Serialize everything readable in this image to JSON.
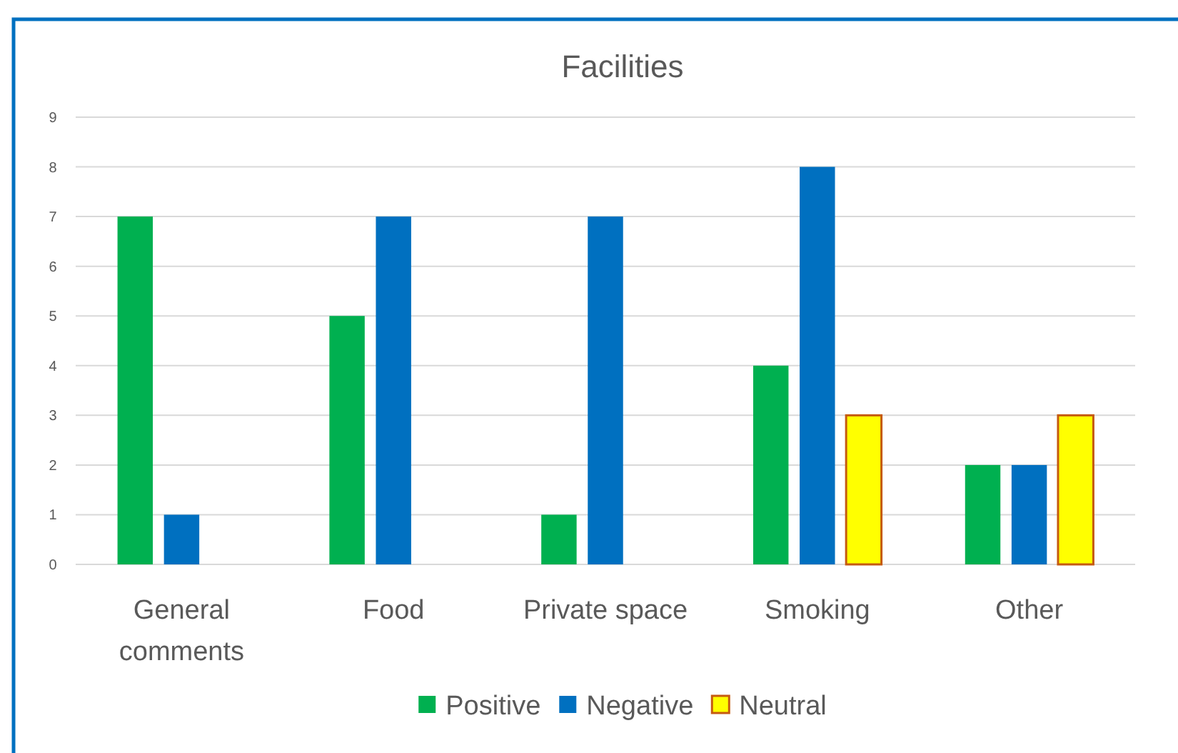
{
  "chart_data": {
    "type": "bar",
    "title": "Facilities",
    "categories": [
      "General comments",
      "Food",
      "Private space",
      "Smoking",
      "Other"
    ],
    "series": [
      {
        "name": "Positive",
        "color": "#00b050",
        "values": [
          7,
          5,
          1,
          4,
          2
        ]
      },
      {
        "name": "Negative",
        "color": "#0070c0",
        "values": [
          1,
          7,
          7,
          8,
          2
        ]
      },
      {
        "name": "Neutral",
        "color": "#ffff00",
        "values": [
          null,
          null,
          null,
          3,
          3
        ]
      }
    ],
    "ylim": [
      0,
      9
    ],
    "yticks": [
      0,
      1,
      2,
      3,
      4,
      5,
      6,
      7,
      8,
      9
    ],
    "grid": "y",
    "legend": "bottom"
  }
}
